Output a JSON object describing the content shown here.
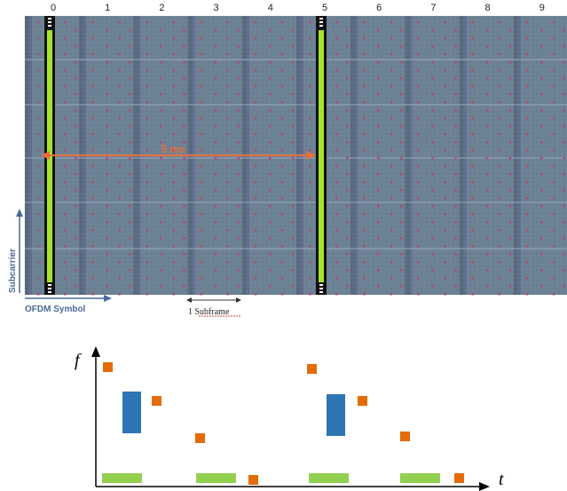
{
  "resource_grid": {
    "subframe_numbers": [
      "0",
      "1",
      "2",
      "3",
      "4",
      "5",
      "6",
      "7",
      "8",
      "9"
    ],
    "highlighted_subframes": [
      0,
      5
    ],
    "interval_label": "5 ms",
    "subcarrier_label": "Subcarrier",
    "ofdm_symbol_label": "OFDM Symbol",
    "subframe_label": "1 Subframe",
    "colors": {
      "grid_background": "#6b7f92",
      "grid_line": "#8ea0b2",
      "pilot_marker": "#b04a6a",
      "sync_signal": "#a6e22e",
      "arrow": "#e8703a",
      "axis_arrow": "#4a6a9a"
    }
  },
  "time_frequency_chart": {
    "y_axis_label": "f",
    "x_axis_label": "t",
    "legend_colors": {
      "orange_block": "#e36c09",
      "blue_block": "#2e75b6",
      "green_block": "#92d050"
    }
  }
}
